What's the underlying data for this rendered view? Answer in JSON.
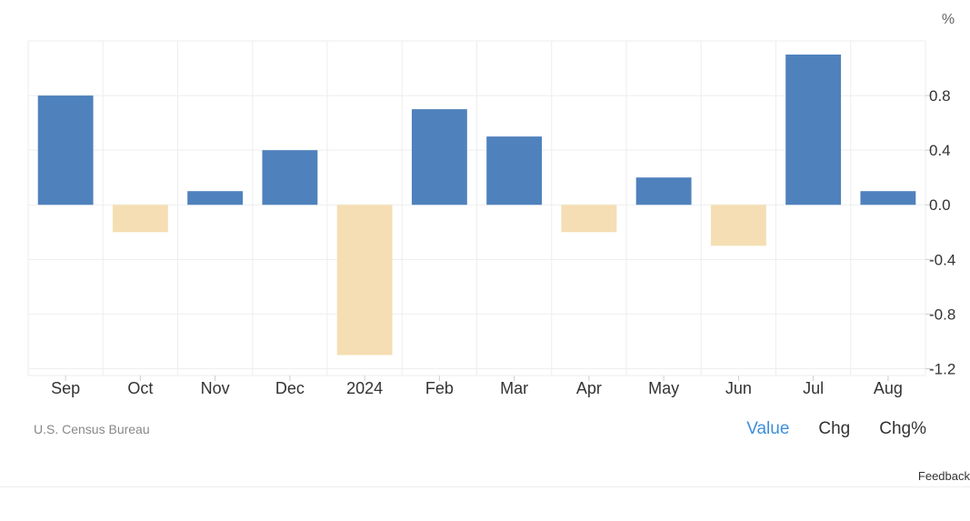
{
  "chart_data": {
    "type": "bar",
    "unit_label": "%",
    "categories": [
      "Sep",
      "Oct",
      "Nov",
      "Dec",
      "2024",
      "Feb",
      "Mar",
      "Apr",
      "May",
      "Jun",
      "Jul",
      "Aug"
    ],
    "values": [
      0.8,
      -0.2,
      0.1,
      0.4,
      -1.1,
      0.7,
      0.5,
      -0.2,
      0.2,
      -0.3,
      1.1,
      0.1
    ],
    "y_ticks": [
      "0.8",
      "0.4",
      "0.0",
      "-0.4",
      "-0.8",
      "-1.2"
    ],
    "y_tick_values": [
      0.8,
      0.4,
      0.0,
      -0.4,
      -0.8,
      -1.2
    ],
    "ylim": [
      -1.25,
      1.2
    ],
    "grid": true,
    "y_axis_side": "right",
    "colors": {
      "positive": "#4f81bd",
      "negative": "#f5deb3",
      "grid": "#eeeeee",
      "axis_text": "#333333"
    }
  },
  "source": "U.S. Census Bureau",
  "toggles": {
    "value": "Value",
    "chg": "Chg",
    "chg_pct": "Chg%"
  },
  "active_color": "#3d8fdc",
  "feedback": "Feedback"
}
